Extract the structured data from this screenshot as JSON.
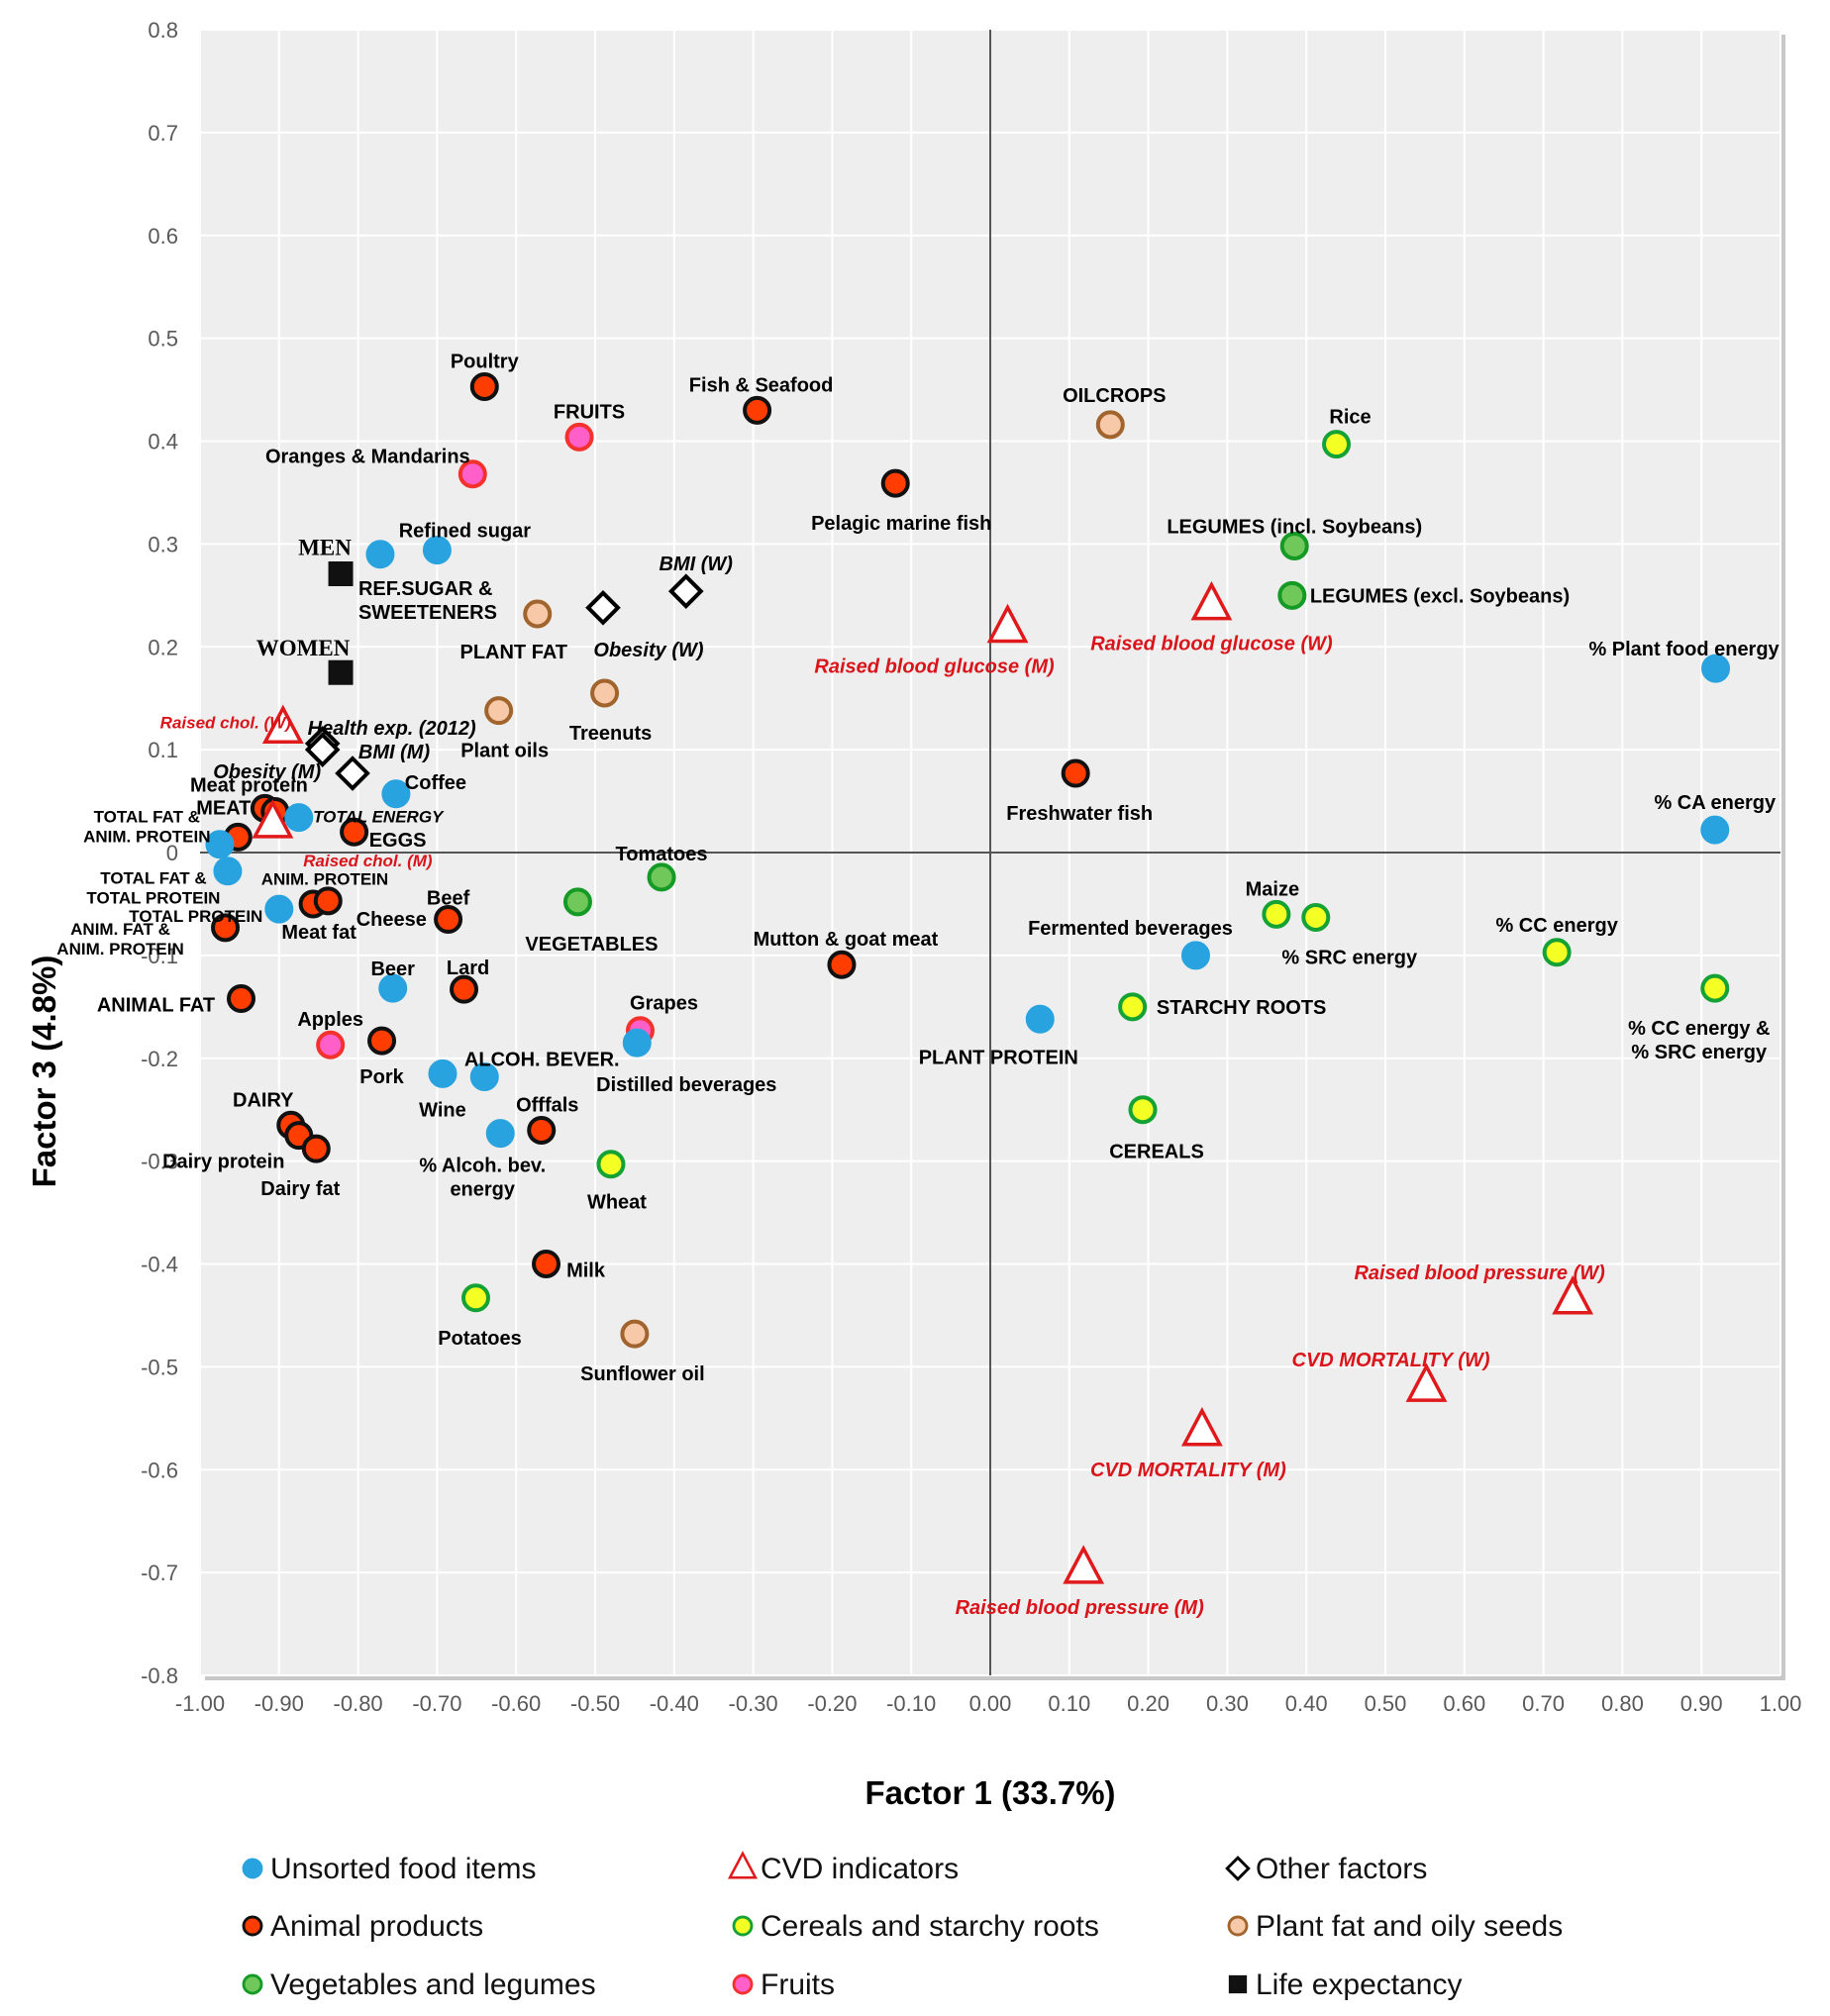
{
  "chart_data": {
    "type": "scatter",
    "xlabel": "Factor 1 (33.7%)",
    "ylabel": "Factor 3 (4.8%)",
    "xlim": [
      -1.0,
      1.0
    ],
    "ylim": [
      -0.8,
      0.8
    ],
    "x_ticks": [
      "-1.00",
      "-0.90",
      "-0.80",
      "-0.70",
      "-0.60",
      "-0.50",
      "-0.40",
      "-0.30",
      "-0.20",
      "-0.10",
      "0.00",
      "0.10",
      "0.20",
      "0.30",
      "0.40",
      "0.50",
      "0.60",
      "0.70",
      "0.80",
      "0.90",
      "1.00"
    ],
    "y_ticks": [
      "0.8",
      "0.7",
      "0.6",
      "0.5",
      "0.4",
      "0.3",
      "0.2",
      "0.1",
      "0",
      "-0.1",
      "-0.2",
      "-0.3",
      "-0.4",
      "-0.5",
      "-0.6",
      "-0.7",
      "-0.8"
    ],
    "categories": {
      "unsorted": {
        "label": "Unsorted food items",
        "shape": "circle",
        "fill": "#29a3e0",
        "stroke": "#29a3e0"
      },
      "animal": {
        "label": "Animal products",
        "shape": "circle",
        "fill": "#ff3d00",
        "stroke": "#111111"
      },
      "vegleg": {
        "label": "Vegetables and legumes",
        "shape": "circle",
        "fill": "#70c85a",
        "stroke": "#159a26"
      },
      "cvd": {
        "label": "CVD indicators",
        "shape": "triangle",
        "fill": "#ffffff",
        "stroke": "#e0191b"
      },
      "cereal": {
        "label": "Cereals and starchy roots",
        "shape": "circle",
        "fill": "#f4ff24",
        "stroke": "#14a235"
      },
      "fruit": {
        "label": "Fruits",
        "shape": "circle",
        "fill": "#ff5fc8",
        "stroke": "#f4322d"
      },
      "other": {
        "label": "Other factors",
        "shape": "diamond",
        "fill": "#ffffff",
        "stroke": "#000000"
      },
      "plantfat": {
        "label": "Plant fat and oily seeds",
        "shape": "circle",
        "fill": "#f8c9a8",
        "stroke": "#a0642c"
      },
      "life": {
        "label": "Life expectancy",
        "shape": "square",
        "fill": "#111111",
        "stroke": "#111111"
      }
    },
    "legend": {
      "columns": [
        [
          "unsorted",
          "animal",
          "vegleg"
        ],
        [
          "cvd",
          "cereal",
          "fruit"
        ],
        [
          "other",
          "plantfat",
          "life"
        ]
      ],
      "placement": "bottom"
    },
    "points": [
      {
        "label": "Poultry",
        "cat": "animal",
        "x": -0.64,
        "y": 0.453
      },
      {
        "label": "Fish & Seafood",
        "cat": "animal",
        "x": -0.295,
        "y": 0.43
      },
      {
        "label": "FRUITS",
        "cat": "fruit",
        "x": -0.52,
        "y": 0.404
      },
      {
        "label": "Oranges & Mandarins",
        "cat": "fruit",
        "x": -0.655,
        "y": 0.368
      },
      {
        "label": "Pelagic marine fish",
        "cat": "animal",
        "x": -0.12,
        "y": 0.359
      },
      {
        "label": "OILCROPS",
        "cat": "plantfat",
        "x": 0.152,
        "y": 0.416
      },
      {
        "label": "Rice",
        "cat": "cereal",
        "x": 0.438,
        "y": 0.397
      },
      {
        "label": "LEGUMES (incl. Soybeans)",
        "cat": "vegleg",
        "x": 0.385,
        "y": 0.298
      },
      {
        "label": "LEGUMES (excl. Soybeans)",
        "cat": "vegleg",
        "x": 0.382,
        "y": 0.25
      },
      {
        "label": "Raised blood glucose (W)",
        "cat": "cvd",
        "x": 0.28,
        "y": 0.24
      },
      {
        "label": "Raised blood glucose (M)",
        "cat": "cvd",
        "x": 0.022,
        "y": 0.218
      },
      {
        "label": "% Plant food energy",
        "cat": "unsorted",
        "x": 0.918,
        "y": 0.179
      },
      {
        "label": "% CA energy",
        "cat": "unsorted",
        "x": 0.917,
        "y": 0.022
      },
      {
        "label": "Freshwater fish",
        "cat": "animal",
        "x": 0.108,
        "y": 0.077
      },
      {
        "label": "MEN",
        "cat": "life",
        "x": -0.822,
        "y": 0.271
      },
      {
        "label": "WOMEN",
        "cat": "life",
        "x": -0.822,
        "y": 0.175
      },
      {
        "label": "Refined sugar",
        "cat": "unsorted",
        "x": -0.7,
        "y": 0.294
      },
      {
        "label": "REF.SUGAR & SWEETENERS",
        "cat": "unsorted",
        "x": -0.772,
        "y": 0.29
      },
      {
        "label": "BMI (W)",
        "cat": "other",
        "x": -0.385,
        "y": 0.254
      },
      {
        "label": "Obesity (W)",
        "cat": "other",
        "x": -0.49,
        "y": 0.238
      },
      {
        "label": "PLANT FAT",
        "cat": "plantfat",
        "x": -0.573,
        "y": 0.232
      },
      {
        "label": "Treenuts",
        "cat": "plantfat",
        "x": -0.488,
        "y": 0.155
      },
      {
        "label": "Plant oils",
        "cat": "plantfat",
        "x": -0.622,
        "y": 0.138
      },
      {
        "label": "Health exp. (2012)",
        "cat": "other",
        "x": -0.845,
        "y": 0.106
      },
      {
        "label": "Obesity (M)",
        "cat": "other",
        "x": -0.845,
        "y": 0.1
      },
      {
        "label": "BMI (M)",
        "cat": "other",
        "x": -0.807,
        "y": 0.077
      },
      {
        "label": "Raised chol. (W)",
        "cat": "cvd",
        "x": -0.895,
        "y": 0.12
      },
      {
        "label": "Coffee",
        "cat": "unsorted",
        "x": -0.752,
        "y": 0.057
      },
      {
        "label": "Meat protein",
        "cat": "animal",
        "x": -0.918,
        "y": 0.043
      },
      {
        "label": "MEAT",
        "cat": "animal",
        "x": -0.905,
        "y": 0.04
      },
      {
        "label": "TOTAL ENERGY",
        "cat": "unsorted",
        "x": -0.875,
        "y": 0.034
      },
      {
        "label": "TOTAL FAT & ANIM. PROTEIN",
        "cat": "animal",
        "x": -0.952,
        "y": 0.015
      },
      {
        "label": "Raised chol. (M)",
        "cat": "cvd",
        "x": -0.908,
        "y": 0.028
      },
      {
        "label": "EGGS",
        "cat": "animal",
        "x": -0.805,
        "y": 0.02
      },
      {
        "label": "ANIM. PROTEIN",
        "cat": "unsorted",
        "x": -0.975,
        "y": 0.008
      },
      {
        "label": "TOTAL FAT & TOTAL PROTEIN",
        "cat": "unsorted",
        "x": -0.965,
        "y": -0.018
      },
      {
        "label": "TOTAL PROTEIN",
        "cat": "unsorted",
        "x": -0.9,
        "y": -0.055
      },
      {
        "label": "Meat fat",
        "cat": "animal",
        "x": -0.857,
        "y": -0.05
      },
      {
        "label": "Cheese",
        "cat": "animal",
        "x": -0.838,
        "y": -0.047
      },
      {
        "label": "Beef",
        "cat": "animal",
        "x": -0.686,
        "y": -0.065
      },
      {
        "label": "ANIM. FAT & ANIM. PROTEIN",
        "cat": "animal",
        "x": -0.968,
        "y": -0.073
      },
      {
        "label": "Tomatoes",
        "cat": "vegleg",
        "x": -0.416,
        "y": -0.024
      },
      {
        "label": "VEGETABLES",
        "cat": "vegleg",
        "x": -0.522,
        "y": -0.048
      },
      {
        "label": "Mutton & goat meat",
        "cat": "animal",
        "x": -0.188,
        "y": -0.109
      },
      {
        "label": "Beer",
        "cat": "unsorted",
        "x": -0.756,
        "y": -0.132
      },
      {
        "label": "Lard",
        "cat": "animal",
        "x": -0.666,
        "y": -0.133
      },
      {
        "label": "ANIMAL FAT",
        "cat": "animal",
        "x": -0.948,
        "y": -0.142
      },
      {
        "label": "Apples",
        "cat": "fruit",
        "x": -0.835,
        "y": -0.187
      },
      {
        "label": "Pork",
        "cat": "animal",
        "x": -0.77,
        "y": -0.183
      },
      {
        "label": "Grapes",
        "cat": "fruit",
        "x": -0.443,
        "y": -0.173
      },
      {
        "label": "Distilled beverages",
        "cat": "unsorted",
        "x": -0.447,
        "y": -0.185
      },
      {
        "label": "Wine",
        "cat": "unsorted",
        "x": -0.693,
        "y": -0.215
      },
      {
        "label": "ALCOH. BEVER.",
        "cat": "unsorted",
        "x": -0.64,
        "y": -0.218
      },
      {
        "label": "DAIRY",
        "cat": "animal",
        "x": -0.885,
        "y": -0.265
      },
      {
        "label": "Dairy protein",
        "cat": "animal",
        "x": -0.875,
        "y": -0.275
      },
      {
        "label": "Dairy fat",
        "cat": "animal",
        "x": -0.853,
        "y": -0.288
      },
      {
        "label": "% Alcoh. bev. energy",
        "cat": "unsorted",
        "x": -0.62,
        "y": -0.273
      },
      {
        "label": "Offfals",
        "cat": "animal",
        "x": -0.568,
        "y": -0.27
      },
      {
        "label": "Wheat",
        "cat": "cereal",
        "x": -0.48,
        "y": -0.303
      },
      {
        "label": "Milk",
        "cat": "animal",
        "x": -0.562,
        "y": -0.4
      },
      {
        "label": "Potatoes",
        "cat": "cereal",
        "x": -0.651,
        "y": -0.433
      },
      {
        "label": "Sunflower oil",
        "cat": "plantfat",
        "x": -0.45,
        "y": -0.468
      },
      {
        "label": "Fermented beverages",
        "cat": "unsorted",
        "x": 0.26,
        "y": -0.1
      },
      {
        "label": "Maize",
        "cat": "cereal",
        "x": 0.362,
        "y": -0.06
      },
      {
        "label": "% SRC energy",
        "cat": "cereal",
        "x": 0.412,
        "y": -0.063
      },
      {
        "label": "% CC energy",
        "cat": "cereal",
        "x": 0.717,
        "y": -0.097
      },
      {
        "label": "% CC energy & % SRC energy",
        "cat": "cereal",
        "x": 0.917,
        "y": -0.132
      },
      {
        "label": "PLANT PROTEIN",
        "cat": "unsorted",
        "x": 0.063,
        "y": -0.162
      },
      {
        "label": "STARCHY ROOTS",
        "cat": "cereal",
        "x": 0.18,
        "y": -0.15
      },
      {
        "label": "CEREALS",
        "cat": "cereal",
        "x": 0.193,
        "y": -0.25
      },
      {
        "label": "Raised blood pressure (W)",
        "cat": "cvd",
        "x": 0.737,
        "y": -0.435
      },
      {
        "label": "CVD MORTALITY (W)",
        "cat": "cvd",
        "x": 0.552,
        "y": -0.52
      },
      {
        "label": "CVD  MORTALITY (M)",
        "cat": "cvd",
        "x": 0.268,
        "y": -0.563
      },
      {
        "label": "Raised blood pressure (M)",
        "cat": "cvd",
        "x": 0.118,
        "y": -0.697
      }
    ]
  }
}
